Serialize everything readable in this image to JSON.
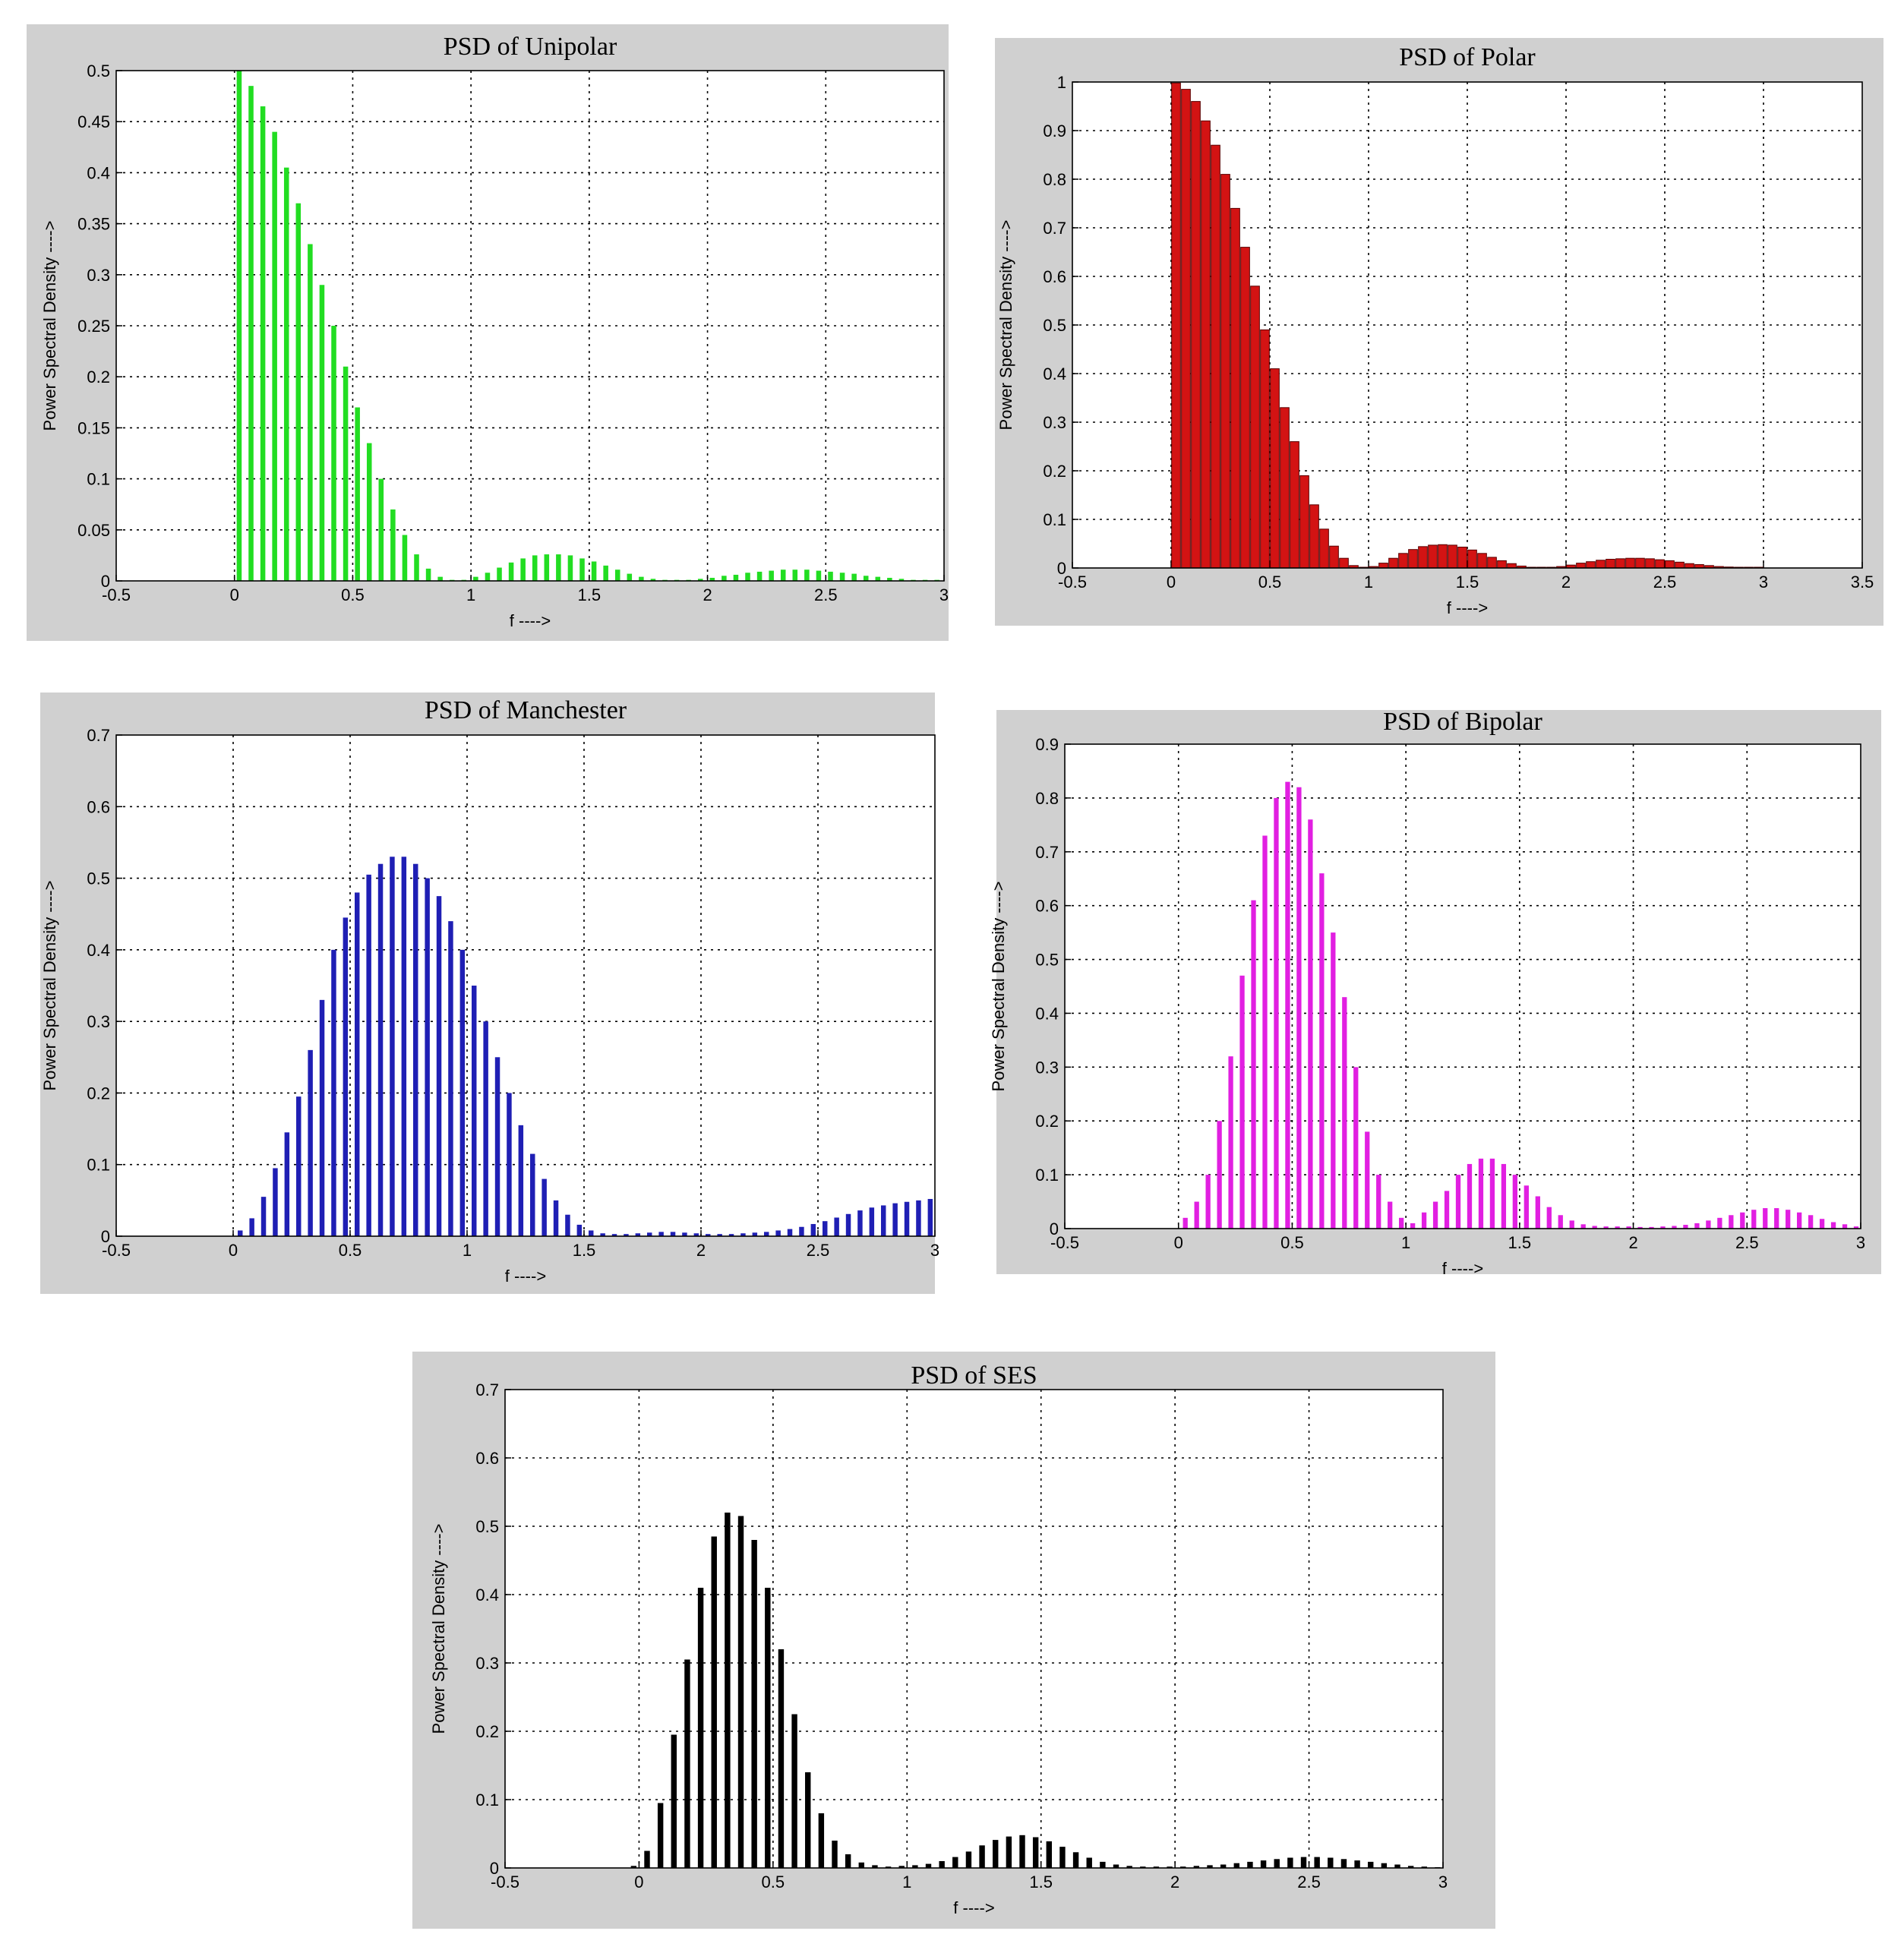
{
  "chart_data": [
    {
      "type": "bar",
      "title": "PSD of Unipolar",
      "xlabel": "f ---->",
      "ylabel": "Power Spectral Density ---->",
      "xlim": [
        -0.5,
        3
      ],
      "ylim": [
        0,
        0.5
      ],
      "grid": true,
      "color": "#22dd22",
      "bar_style": "stem",
      "x_ticks": [
        "-0.5",
        "0",
        "0.5",
        "1",
        "1.5",
        "2",
        "2.5",
        "3"
      ],
      "y_ticks": [
        "0",
        "0.05",
        "0.1",
        "0.15",
        "0.2",
        "0.25",
        "0.3",
        "0.35",
        "0.4",
        "0.45",
        "0.5"
      ],
      "series": [
        {
          "x": [
            0.02,
            0.07,
            0.12,
            0.17,
            0.22,
            0.27,
            0.32,
            0.37,
            0.42,
            0.47,
            0.52,
            0.57,
            0.62,
            0.67,
            0.72,
            0.77,
            0.82,
            0.87,
            0.92,
            0.97,
            1.02,
            1.07,
            1.12,
            1.17,
            1.22,
            1.27,
            1.32,
            1.37,
            1.42,
            1.47,
            1.52,
            1.57,
            1.62,
            1.67,
            1.72,
            1.77,
            1.82,
            1.87,
            1.92,
            1.97,
            2.02,
            2.07,
            2.12,
            2.17,
            2.22,
            2.27,
            2.32,
            2.37,
            2.42,
            2.47,
            2.52,
            2.57,
            2.62,
            2.67,
            2.72,
            2.77,
            2.82,
            2.87,
            2.92,
            2.97
          ],
          "values": [
            0.5,
            0.485,
            0.465,
            0.44,
            0.405,
            0.37,
            0.33,
            0.29,
            0.25,
            0.21,
            0.17,
            0.135,
            0.1,
            0.07,
            0.045,
            0.026,
            0.012,
            0.004,
            0.001,
            0.001,
            0.004,
            0.008,
            0.013,
            0.018,
            0.022,
            0.025,
            0.026,
            0.026,
            0.025,
            0.022,
            0.019,
            0.015,
            0.011,
            0.007,
            0.004,
            0.002,
            0.001,
            0.001,
            0.001,
            0.002,
            0.003,
            0.005,
            0.006,
            0.008,
            0.009,
            0.01,
            0.011,
            0.011,
            0.011,
            0.01,
            0.009,
            0.008,
            0.007,
            0.005,
            0.004,
            0.003,
            0.002,
            0.001,
            0.001,
            0.001
          ]
        }
      ]
    },
    {
      "type": "bar",
      "title": "PSD of Polar",
      "xlabel": "f ---->",
      "ylabel": "Power Spectral Density ---->",
      "xlim": [
        -0.5,
        3.5
      ],
      "ylim": [
        0,
        1
      ],
      "grid": true,
      "color": "#d31313",
      "bar_style": "filled",
      "x_ticks": [
        "-0.5",
        "0",
        "0.5",
        "1",
        "1.5",
        "2",
        "2.5",
        "3",
        "3.5"
      ],
      "y_ticks": [
        "0",
        "0.1",
        "0.2",
        "0.3",
        "0.4",
        "0.5",
        "0.6",
        "0.7",
        "0.8",
        "0.9",
        "1"
      ],
      "series": [
        {
          "x": [
            0.025,
            0.075,
            0.125,
            0.175,
            0.225,
            0.275,
            0.325,
            0.375,
            0.425,
            0.475,
            0.525,
            0.575,
            0.625,
            0.675,
            0.725,
            0.775,
            0.825,
            0.875,
            0.925,
            0.975,
            1.025,
            1.075,
            1.125,
            1.175,
            1.225,
            1.275,
            1.325,
            1.375,
            1.425,
            1.475,
            1.525,
            1.575,
            1.625,
            1.675,
            1.725,
            1.775,
            1.825,
            1.875,
            1.925,
            1.975,
            2.025,
            2.075,
            2.125,
            2.175,
            2.225,
            2.275,
            2.325,
            2.375,
            2.425,
            2.475,
            2.525,
            2.575,
            2.625,
            2.675,
            2.725,
            2.775,
            2.825,
            2.875,
            2.925,
            2.975
          ],
          "values": [
            0.998,
            0.985,
            0.96,
            0.92,
            0.87,
            0.81,
            0.74,
            0.66,
            0.58,
            0.49,
            0.41,
            0.33,
            0.26,
            0.19,
            0.13,
            0.08,
            0.045,
            0.02,
            0.005,
            0.001,
            0.003,
            0.01,
            0.02,
            0.03,
            0.038,
            0.044,
            0.047,
            0.048,
            0.047,
            0.043,
            0.037,
            0.03,
            0.022,
            0.015,
            0.009,
            0.004,
            0.001,
            0.001,
            0.001,
            0.003,
            0.006,
            0.01,
            0.013,
            0.016,
            0.018,
            0.019,
            0.02,
            0.02,
            0.019,
            0.017,
            0.015,
            0.012,
            0.009,
            0.007,
            0.005,
            0.003,
            0.002,
            0.001,
            0.001,
            0.001
          ]
        }
      ]
    },
    {
      "type": "bar",
      "title": "PSD of Manchester",
      "xlabel": "f ---->",
      "ylabel": "Power Spectral Density ---->",
      "xlim": [
        -0.5,
        3
      ],
      "ylim": [
        0,
        0.7
      ],
      "grid": true,
      "color": "#1f1fb4",
      "bar_style": "stem",
      "x_ticks": [
        "-0.5",
        "0",
        "0.5",
        "1",
        "1.5",
        "2",
        "2.5",
        "3"
      ],
      "y_ticks": [
        "0",
        "0.1",
        "0.2",
        "0.3",
        "0.4",
        "0.5",
        "0.6",
        "0.7"
      ],
      "series": [
        {
          "x": [
            0.03,
            0.08,
            0.13,
            0.18,
            0.23,
            0.28,
            0.33,
            0.38,
            0.43,
            0.48,
            0.53,
            0.58,
            0.63,
            0.68,
            0.73,
            0.78,
            0.83,
            0.88,
            0.93,
            0.98,
            1.03,
            1.08,
            1.13,
            1.18,
            1.23,
            1.28,
            1.33,
            1.38,
            1.43,
            1.48,
            1.53,
            1.58,
            1.63,
            1.68,
            1.73,
            1.78,
            1.83,
            1.88,
            1.93,
            1.98,
            2.03,
            2.08,
            2.13,
            2.18,
            2.23,
            2.28,
            2.33,
            2.38,
            2.43,
            2.48,
            2.53,
            2.58,
            2.63,
            2.68,
            2.73,
            2.78,
            2.83,
            2.88,
            2.93,
            2.98
          ],
          "values": [
            0.008,
            0.025,
            0.055,
            0.095,
            0.145,
            0.195,
            0.26,
            0.33,
            0.4,
            0.445,
            0.48,
            0.505,
            0.52,
            0.53,
            0.53,
            0.52,
            0.5,
            0.475,
            0.44,
            0.4,
            0.35,
            0.3,
            0.25,
            0.2,
            0.155,
            0.115,
            0.08,
            0.05,
            0.03,
            0.016,
            0.008,
            0.004,
            0.003,
            0.003,
            0.004,
            0.005,
            0.006,
            0.006,
            0.005,
            0.004,
            0.003,
            0.003,
            0.003,
            0.004,
            0.005,
            0.006,
            0.008,
            0.01,
            0.013,
            0.017,
            0.021,
            0.026,
            0.031,
            0.036,
            0.04,
            0.043,
            0.046,
            0.048,
            0.05,
            0.052
          ]
        }
      ]
    },
    {
      "type": "bar",
      "title": "PSD of Bipolar",
      "xlabel": "f ---->",
      "ylabel": "Power Spectral Density ---->",
      "xlim": [
        -0.5,
        3
      ],
      "ylim": [
        0,
        0.9
      ],
      "grid": true,
      "color": "#e11fe1",
      "bar_style": "stem",
      "x_ticks": [
        "-0.5",
        "0",
        "0.5",
        "1",
        "1.5",
        "2",
        "2.5",
        "3"
      ],
      "y_ticks": [
        "0",
        "0.1",
        "0.2",
        "0.3",
        "0.4",
        "0.5",
        "0.6",
        "0.7",
        "0.8",
        "0.9"
      ],
      "series": [
        {
          "x": [
            0.03,
            0.08,
            0.13,
            0.18,
            0.23,
            0.28,
            0.33,
            0.38,
            0.43,
            0.48,
            0.53,
            0.58,
            0.63,
            0.68,
            0.73,
            0.78,
            0.83,
            0.88,
            0.93,
            0.98,
            1.03,
            1.08,
            1.13,
            1.18,
            1.23,
            1.28,
            1.33,
            1.38,
            1.43,
            1.48,
            1.53,
            1.58,
            1.63,
            1.68,
            1.73,
            1.78,
            1.83,
            1.88,
            1.93,
            1.98,
            2.03,
            2.08,
            2.13,
            2.18,
            2.23,
            2.28,
            2.33,
            2.38,
            2.43,
            2.48,
            2.53,
            2.58,
            2.63,
            2.68,
            2.73,
            2.78,
            2.83,
            2.88,
            2.93,
            2.98
          ],
          "values": [
            0.02,
            0.05,
            0.1,
            0.2,
            0.32,
            0.47,
            0.61,
            0.73,
            0.8,
            0.83,
            0.82,
            0.76,
            0.66,
            0.55,
            0.43,
            0.3,
            0.18,
            0.1,
            0.05,
            0.02,
            0.01,
            0.03,
            0.05,
            0.07,
            0.1,
            0.12,
            0.13,
            0.13,
            0.12,
            0.1,
            0.08,
            0.06,
            0.04,
            0.025,
            0.015,
            0.008,
            0.005,
            0.004,
            0.004,
            0.004,
            0.003,
            0.003,
            0.004,
            0.005,
            0.007,
            0.01,
            0.015,
            0.02,
            0.025,
            0.03,
            0.035,
            0.038,
            0.038,
            0.035,
            0.03,
            0.025,
            0.018,
            0.012,
            0.008,
            0.004
          ]
        }
      ]
    },
    {
      "type": "bar",
      "title": "PSD of SES",
      "xlabel": "f ---->",
      "ylabel": "Power Spectral Density ---->",
      "xlim": [
        -0.5,
        3
      ],
      "ylim": [
        0,
        0.7
      ],
      "grid": true,
      "color": "#000000",
      "bar_style": "stem",
      "x_ticks": [
        "-0.5",
        "0",
        "0.5",
        "1",
        "1.5",
        "2",
        "2.5",
        "3"
      ],
      "y_ticks": [
        "0",
        "0.1",
        "0.2",
        "0.3",
        "0.4",
        "0.5",
        "0.6",
        "0.7"
      ],
      "series": [
        {
          "x": [
            -0.02,
            0.03,
            0.08,
            0.13,
            0.18,
            0.23,
            0.28,
            0.33,
            0.38,
            0.43,
            0.48,
            0.53,
            0.58,
            0.63,
            0.68,
            0.73,
            0.78,
            0.83,
            0.88,
            0.93,
            0.98,
            1.03,
            1.08,
            1.13,
            1.18,
            1.23,
            1.28,
            1.33,
            1.38,
            1.43,
            1.48,
            1.53,
            1.58,
            1.63,
            1.68,
            1.73,
            1.78,
            1.83,
            1.88,
            1.93,
            1.98,
            2.03,
            2.08,
            2.13,
            2.18,
            2.23,
            2.28,
            2.33,
            2.38,
            2.43,
            2.48,
            2.53,
            2.58,
            2.63,
            2.68,
            2.73,
            2.78,
            2.83,
            2.88,
            2.93,
            2.98
          ],
          "values": [
            0.003,
            0.025,
            0.095,
            0.195,
            0.305,
            0.41,
            0.485,
            0.52,
            0.515,
            0.48,
            0.41,
            0.32,
            0.225,
            0.14,
            0.08,
            0.04,
            0.02,
            0.008,
            0.004,
            0.002,
            0.003,
            0.004,
            0.006,
            0.01,
            0.016,
            0.024,
            0.033,
            0.041,
            0.046,
            0.048,
            0.045,
            0.039,
            0.031,
            0.023,
            0.015,
            0.009,
            0.005,
            0.003,
            0.002,
            0.002,
            0.002,
            0.002,
            0.003,
            0.004,
            0.005,
            0.007,
            0.009,
            0.011,
            0.013,
            0.015,
            0.016,
            0.016,
            0.015,
            0.013,
            0.011,
            0.009,
            0.007,
            0.005,
            0.003,
            0.002,
            0.001
          ]
        }
      ]
    }
  ]
}
